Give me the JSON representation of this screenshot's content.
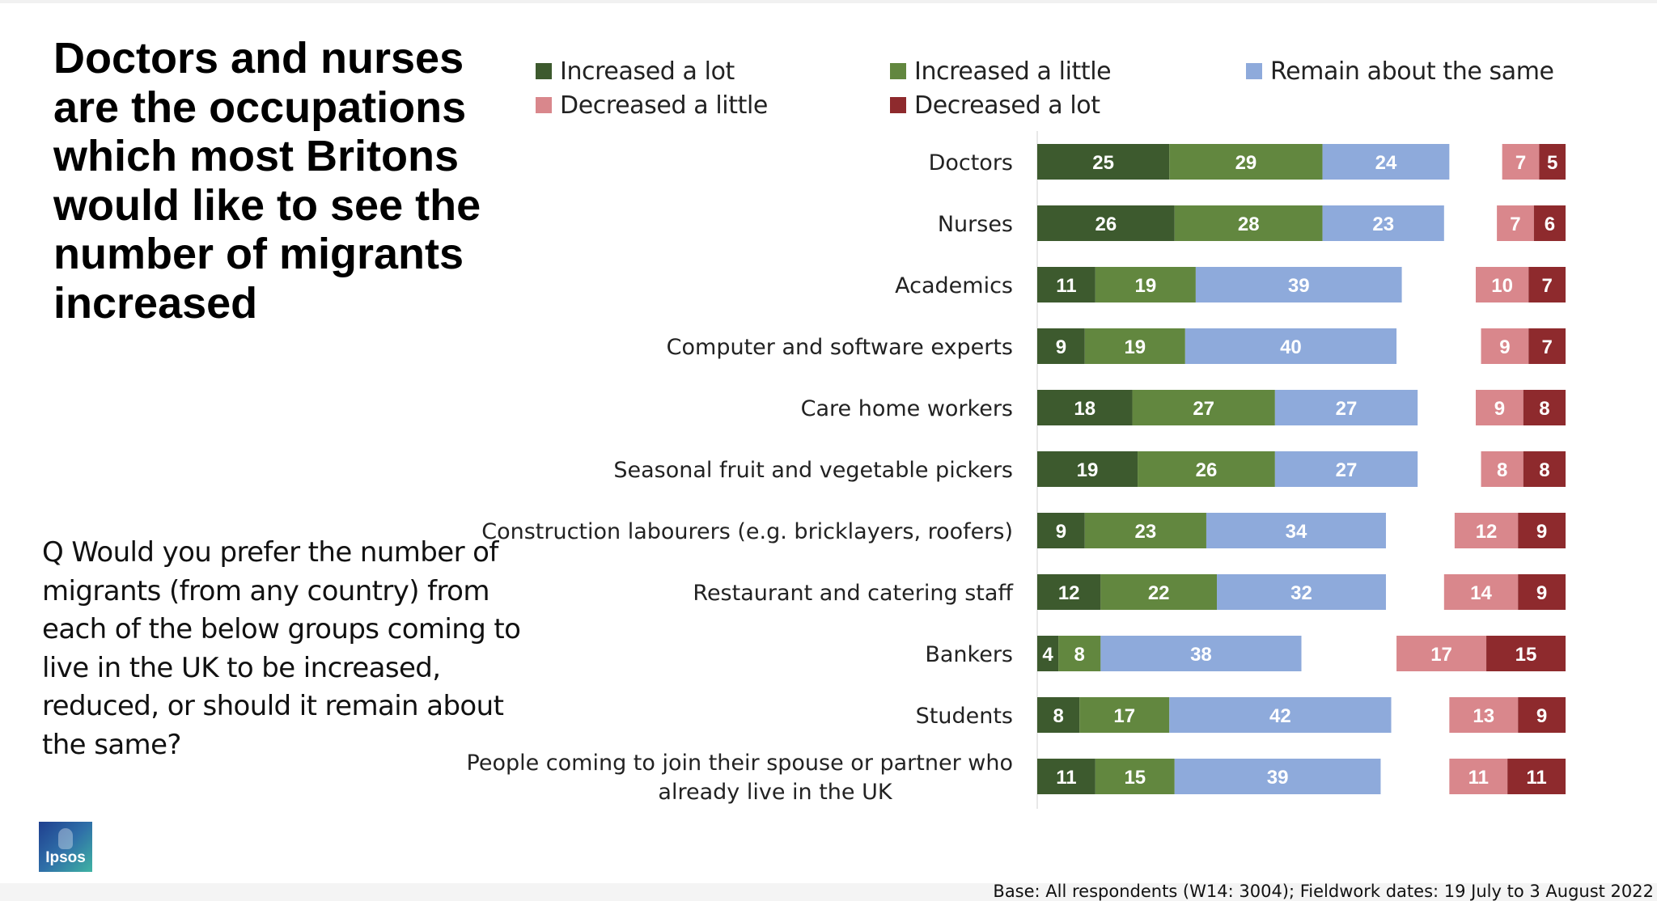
{
  "headline": "Doctors and nurses are the occupations which most Britons would like to see the number of migrants increased",
  "question": "Q Would you prefer the number of migrants (from any country) from each of the below groups coming to live in the UK to be increased, reduced, or should it remain about the same?",
  "base_note": "Base: All respondents (W14: 3004); Fieldwork dates: 19 July to 3 August 2022",
  "logo_text": "Ipsos",
  "chart_data": {
    "type": "bar",
    "orientation": "horizontal",
    "stacked": true,
    "title": "",
    "xlabel": "",
    "ylabel": "",
    "legend_placement": "top",
    "grid": false,
    "categories": [
      "Doctors",
      "Nurses",
      "Academics",
      "Computer and software experts",
      "Care home workers",
      "Seasonal fruit and vegetable pickers",
      "Construction labourers (e.g. bricklayers, roofers)",
      "Restaurant and catering staff",
      "Bankers",
      "Students",
      "People coming to join their spouse or partner who already live in the UK"
    ],
    "series": [
      {
        "name": "Increased a lot",
        "color": "#3d5a2e",
        "values": [
          25,
          26,
          11,
          9,
          18,
          19,
          9,
          12,
          4,
          8,
          11
        ]
      },
      {
        "name": "Increased a little",
        "color": "#62873f",
        "values": [
          29,
          28,
          19,
          19,
          27,
          26,
          23,
          22,
          8,
          17,
          15
        ]
      },
      {
        "name": "Remain about the same",
        "color": "#8eaadb",
        "values": [
          24,
          23,
          39,
          40,
          27,
          27,
          34,
          32,
          38,
          42,
          39
        ]
      },
      {
        "name": "Decreased a little",
        "color": "#d9878c",
        "values": [
          7,
          7,
          10,
          9,
          9,
          8,
          12,
          14,
          17,
          13,
          11
        ]
      },
      {
        "name": "Decreased a lot",
        "color": "#8e2a2d",
        "values": [
          5,
          6,
          7,
          7,
          8,
          8,
          9,
          9,
          15,
          9,
          11
        ]
      }
    ]
  }
}
